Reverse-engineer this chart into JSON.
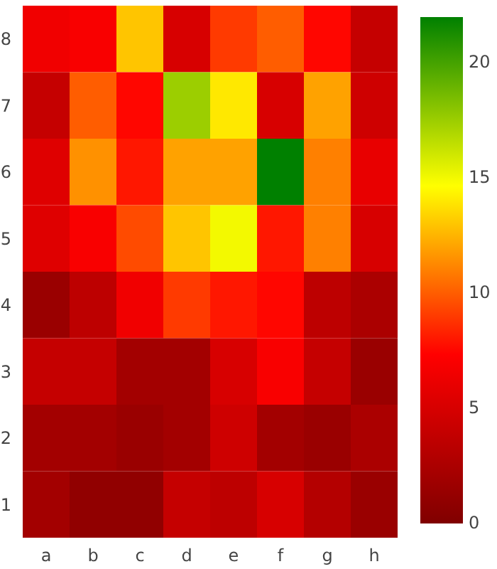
{
  "chart_data": {
    "type": "heatmap",
    "categories": [
      "a",
      "b",
      "c",
      "d",
      "e",
      "f",
      "g",
      "h"
    ],
    "y_categories": [
      "8",
      "7",
      "6",
      "5",
      "4",
      "3",
      "2",
      "1"
    ],
    "cells": [
      [
        6.5,
        7,
        13,
        5,
        9,
        10,
        7.5,
        4
      ],
      [
        4,
        10,
        7.5,
        17.5,
        14,
        5,
        12,
        4.5
      ],
      [
        5.5,
        11.5,
        8,
        12,
        12,
        22,
        11,
        6
      ],
      [
        5.5,
        7,
        9.5,
        13,
        15,
        8,
        11,
        5
      ],
      [
        1.5,
        3.5,
        6.5,
        9,
        8,
        7.5,
        3.5,
        2.5
      ],
      [
        4,
        4,
        2,
        2,
        5,
        7,
        4,
        1.5
      ],
      [
        2,
        2,
        1.5,
        2,
        4.5,
        2,
        1.5,
        2.5
      ],
      [
        2,
        1,
        1,
        4,
        3.5,
        5,
        3,
        1.5
      ]
    ],
    "clim": [
      0,
      22
    ],
    "cticks": [
      0,
      5,
      10,
      15,
      20
    ]
  }
}
